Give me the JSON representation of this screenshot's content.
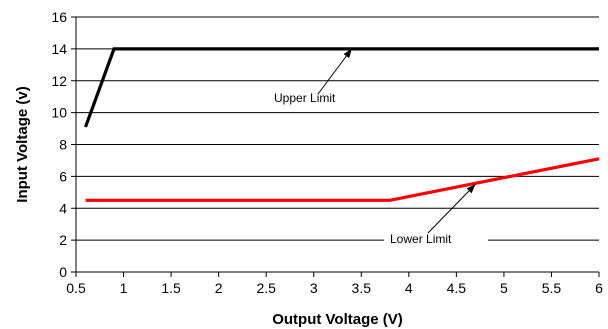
{
  "chart_data": {
    "type": "line",
    "xlabel": "Output Voltage (V)",
    "ylabel": "Input Voltage (v)",
    "xlim": [
      0.5,
      6
    ],
    "ylim": [
      0,
      16
    ],
    "x_ticks": [
      "0.5",
      "1",
      "1.5",
      "2",
      "2.5",
      "3",
      "3.5",
      "4",
      "4.5",
      "5",
      "5.5",
      "6"
    ],
    "y_ticks": [
      "0",
      "2",
      "4",
      "6",
      "8",
      "10",
      "12",
      "14",
      "16"
    ],
    "grid": "horizontal",
    "legend": "none",
    "series": [
      {
        "name": "Upper Limit",
        "color": "#000000",
        "points": [
          [
            0.6,
            9.1
          ],
          [
            0.9,
            14
          ],
          [
            6,
            14
          ]
        ]
      },
      {
        "name": "Lower Limit",
        "color": "#ff0000",
        "points": [
          [
            0.6,
            4.5
          ],
          [
            3.8,
            4.5
          ],
          [
            6,
            7.1
          ]
        ]
      }
    ],
    "annotations": [
      {
        "text": "Upper Limit",
        "arrow_to": [
          3.4,
          14
        ]
      },
      {
        "text": "Lower Limit",
        "arrow_to": [
          4.7,
          5.5
        ]
      }
    ]
  }
}
